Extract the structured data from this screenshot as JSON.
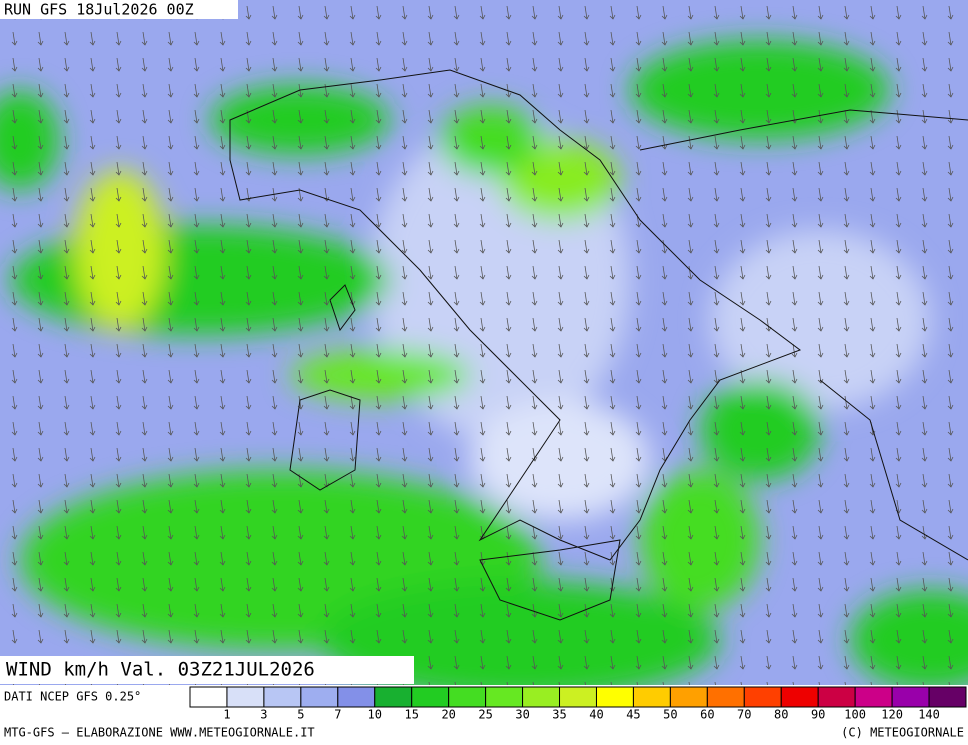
{
  "header": {
    "run": "RUN GFS 18Jul2026 00Z"
  },
  "footer": {
    "field": "WIND km/h Val. 03Z21JUL2026",
    "source": "DATI NCEP GFS 0.25°",
    "credit": "MTG-GFS — ELABORAZIONE WWW.METEOGIORNALE.IT",
    "copyright": "(C) METEOGIORNALE"
  },
  "legend": {
    "ticks": [
      1,
      3,
      5,
      7,
      10,
      15,
      20,
      25,
      30,
      35,
      40,
      45,
      50,
      60,
      70,
      80,
      90,
      100,
      120,
      140
    ],
    "colors": [
      "#ffffff",
      "#d8e0f8",
      "#b8c6f4",
      "#9eaef0",
      "#8390e8",
      "#18b030",
      "#22cc22",
      "#44dd22",
      "#66e822",
      "#99ee22",
      "#ccf022",
      "#ffff00",
      "#ffcc00",
      "#ffa000",
      "#ff7000",
      "#ff4000",
      "#ee0000",
      "#cc0044",
      "#cc0088",
      "#9900aa",
      "#660066"
    ]
  }
}
